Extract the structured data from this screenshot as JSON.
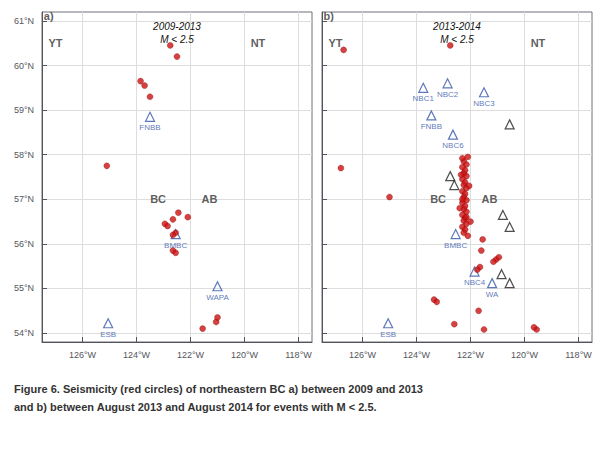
{
  "chart_data": [
    {
      "type": "scatter",
      "title": "2009-2013\nM < 2.5",
      "xlim": [
        -127.5,
        -117.5
      ],
      "ylim": [
        53.8,
        61.2
      ],
      "xticks": [
        {
          "value": -126,
          "label": "126°W"
        },
        {
          "value": -124,
          "label": "124°W"
        },
        {
          "value": -122,
          "label": "122°W"
        },
        {
          "value": -120,
          "label": "120°W"
        },
        {
          "value": -118,
          "label": "118°W"
        }
      ],
      "yticks": [
        {
          "value": 54,
          "label": "54°N"
        },
        {
          "value": 55,
          "label": "55°N"
        },
        {
          "value": 56,
          "label": "56°N"
        },
        {
          "value": 57,
          "label": "57°N"
        },
        {
          "value": 58,
          "label": "58°N"
        },
        {
          "value": 59,
          "label": "59°N"
        },
        {
          "value": 60,
          "label": "60°N"
        },
        {
          "value": 61,
          "label": "61°N"
        }
      ],
      "grid": true,
      "series": [
        {
          "type": "scatter",
          "color": "#cc1111",
          "marker": "circle",
          "values": [
            [
              -125.1,
              57.75
            ],
            [
              -123.85,
              59.65
            ],
            [
              -123.7,
              59.55
            ],
            [
              -122.55,
              56.25
            ],
            [
              -122.65,
              56.2
            ],
            [
              -122.65,
              55.85
            ],
            [
              -122.55,
              55.8
            ],
            [
              -122.95,
              56.45
            ],
            [
              -122.85,
              56.4
            ],
            [
              -122.45,
              56.7
            ],
            [
              -122.1,
              56.6
            ],
            [
              -121.05,
              54.25
            ],
            [
              -121.55,
              54.1
            ],
            [
              -123.5,
              59.3
            ],
            [
              -122.75,
              60.45
            ],
            [
              -122.65,
              56.55
            ],
            [
              -122.5,
              60.2
            ],
            [
              -121.0,
              54.35
            ]
          ]
        },
        {
          "type": "scatter",
          "color": "#3355aa",
          "marker": "triangle",
          "values": [
            [
              -123.5,
              58.85
            ],
            [
              -122.55,
              56.22
            ],
            [
              -121.0,
              55.05
            ],
            [
              -125.05,
              54.22
            ]
          ],
          "labels": [
            "FNBB",
            "BMBC",
            "WAPA",
            "ESB"
          ]
        }
      ],
      "annotations": [
        {
          "text": "YT",
          "x": -127.0,
          "y": 60.5
        },
        {
          "text": "NT",
          "x": -119.5,
          "y": 60.5
        },
        {
          "text": "BC",
          "x": -123.2,
          "y": 57.0
        },
        {
          "text": "AB",
          "x": -121.3,
          "y": 57.0
        },
        {
          "text": "a)",
          "x": -127.25,
          "y": 61.12
        }
      ]
    },
    {
      "type": "scatter",
      "title": "2013-2014\nM < 2.5",
      "xlim": [
        -127.5,
        -117.5
      ],
      "ylim": [
        53.8,
        61.2
      ],
      "xticks": [
        {
          "value": -126,
          "label": "126°W"
        },
        {
          "value": -124,
          "label": "124°W"
        },
        {
          "value": -122,
          "label": "122°W"
        },
        {
          "value": -120,
          "label": "120°W"
        },
        {
          "value": -118,
          "label": "118°W"
        }
      ],
      "yticks": [
        54,
        55,
        56,
        57,
        58,
        59,
        60,
        61
      ],
      "tick_labels": "x",
      "grid": true,
      "series": [
        {
          "type": "scatter",
          "color": "#3355aa",
          "marker": "triangle",
          "values": [
            [
              -123.75,
              59.5
            ],
            [
              -122.85,
              59.6
            ],
            [
              -121.5,
              59.4
            ],
            [
              -123.45,
              58.88
            ],
            [
              -122.65,
              58.45
            ],
            [
              -122.55,
              56.22
            ],
            [
              -121.85,
              55.38
            ],
            [
              -121.2,
              55.12
            ],
            [
              -125.05,
              54.22
            ]
          ],
          "labels": [
            "NBC1",
            "NBC2",
            "NBC3",
            "FNBB",
            "NBC6",
            "BMBC",
            "NBC4",
            "WA",
            "ESB"
          ]
        },
        {
          "type": "scatter",
          "color": "#222222",
          "marker": "triangle",
          "values": [
            [
              -120.55,
              58.68
            ],
            [
              -122.75,
              57.52
            ],
            [
              -122.6,
              57.32
            ],
            [
              -120.8,
              56.65
            ],
            [
              -120.55,
              56.38
            ],
            [
              -120.85,
              55.32
            ],
            [
              -120.55,
              55.12
            ]
          ]
        },
        {
          "type": "scatter",
          "color": "#cc1111",
          "marker": "circle",
          "values": [
            [
              -122.25,
              57.85
            ],
            [
              -122.15,
              57.78
            ],
            [
              -122.3,
              57.72
            ],
            [
              -122.2,
              57.65
            ],
            [
              -122.25,
              57.58
            ],
            [
              -122.15,
              57.52
            ],
            [
              -122.3,
              57.45
            ],
            [
              -122.2,
              57.38
            ],
            [
              -122.25,
              57.32
            ],
            [
              -122.15,
              57.25
            ],
            [
              -122.3,
              57.18
            ],
            [
              -122.2,
              57.12
            ],
            [
              -122.25,
              57.05
            ],
            [
              -122.15,
              56.98
            ],
            [
              -122.3,
              56.92
            ],
            [
              -122.2,
              56.85
            ],
            [
              -122.25,
              56.78
            ],
            [
              -122.15,
              56.72
            ],
            [
              -122.3,
              56.65
            ],
            [
              -122.2,
              56.58
            ],
            [
              -122.25,
              56.52
            ],
            [
              -122.15,
              56.45
            ],
            [
              -122.3,
              56.38
            ],
            [
              -122.2,
              56.32
            ],
            [
              -122.25,
              56.25
            ],
            [
              -122.1,
              56.18
            ],
            [
              -122.3,
              57.92
            ],
            [
              -122.1,
              57.95
            ],
            [
              -122.35,
              57.55
            ],
            [
              -122.05,
              57.3
            ],
            [
              -122.4,
              56.8
            ],
            [
              -122.0,
              56.5
            ],
            [
              -122.3,
              57.0
            ],
            [
              -122.15,
              56.6
            ]
          ]
        },
        {
          "type": "scatter",
          "color": "#cc1111",
          "marker": "circle",
          "values": [
            [
              -125.0,
              57.05
            ],
            [
              -123.35,
              54.75
            ],
            [
              -123.25,
              54.7
            ],
            [
              -121.65,
              55.48
            ],
            [
              -121.75,
              55.42
            ],
            [
              -122.75,
              60.45
            ],
            [
              -121.5,
              54.08
            ],
            [
              -119.55,
              54.08
            ],
            [
              -119.65,
              54.13
            ],
            [
              -121.05,
              55.65
            ],
            [
              -121.15,
              55.6
            ],
            [
              -121.6,
              55.85
            ],
            [
              -120.95,
              55.7
            ],
            [
              -121.55,
              56.1
            ],
            [
              -121.7,
              54.5
            ],
            [
              -122.6,
              54.2
            ],
            [
              -126.7,
              60.35
            ],
            [
              -126.8,
              57.7
            ]
          ]
        }
      ],
      "annotations": [
        {
          "text": "YT",
          "x": -127.0,
          "y": 60.5
        },
        {
          "text": "NT",
          "x": -119.5,
          "y": 60.5
        },
        {
          "text": "BC",
          "x": -123.2,
          "y": 57.0
        },
        {
          "text": "AB",
          "x": -121.3,
          "y": 57.0
        },
        {
          "text": "b)",
          "x": -127.25,
          "y": 61.12
        }
      ]
    }
  ],
  "caption": [
    "Figure 6. Seismicity (red circles) of northeastern BC a) between 2009 and 2013",
    "and b) between August 2013 and August 2014 for events with M < 2.5."
  ]
}
